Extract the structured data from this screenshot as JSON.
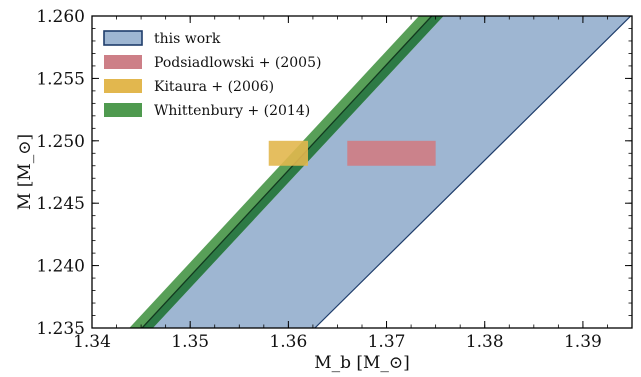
{
  "chart_data": {
    "type": "area",
    "xlabel": "M_b [M_⊙]",
    "ylabel": "M [M_⊙]",
    "xlim": [
      1.34,
      1.395
    ],
    "ylim": [
      1.235,
      1.26
    ],
    "x_ticks": [
      "1.34",
      "1.35",
      "1.36",
      "1.37",
      "1.38",
      "1.39"
    ],
    "y_ticks": [
      "1.235",
      "1.240",
      "1.245",
      "1.250",
      "1.255",
      "1.260"
    ],
    "legend_placement": "top-left",
    "series": [
      {
        "name": "this work",
        "kind": "band",
        "color": "#9eb6d2",
        "edge_color": "#1f3d6b",
        "polygon": [
          [
            1.3462,
            1.235
          ],
          [
            1.3627,
            1.235
          ],
          [
            1.395,
            1.2601
          ],
          [
            1.3758,
            1.26
          ]
        ]
      },
      {
        "name": "Podsiadlowski + (2005)",
        "kind": "rect",
        "color": "#cd7f87",
        "x_range": [
          1.366,
          1.375
        ],
        "y_range": [
          1.248,
          1.25
        ]
      },
      {
        "name": "Kitaura + (2006)",
        "kind": "rect",
        "color": "#e2b74e",
        "x_range": [
          1.358,
          1.362
        ],
        "y_range": [
          1.248,
          1.25
        ]
      },
      {
        "name": "Whittenbury + (2014)",
        "kind": "band",
        "color": "#4f9a4f",
        "inner_color": "#2d7a45",
        "polygon": [
          [
            1.3438,
            1.235
          ],
          [
            1.3462,
            1.235
          ],
          [
            1.3758,
            1.26
          ],
          [
            1.3733,
            1.26
          ]
        ],
        "center_line": [
          [
            1.3451,
            1.235
          ],
          [
            1.3746,
            1.26
          ]
        ]
      }
    ]
  }
}
